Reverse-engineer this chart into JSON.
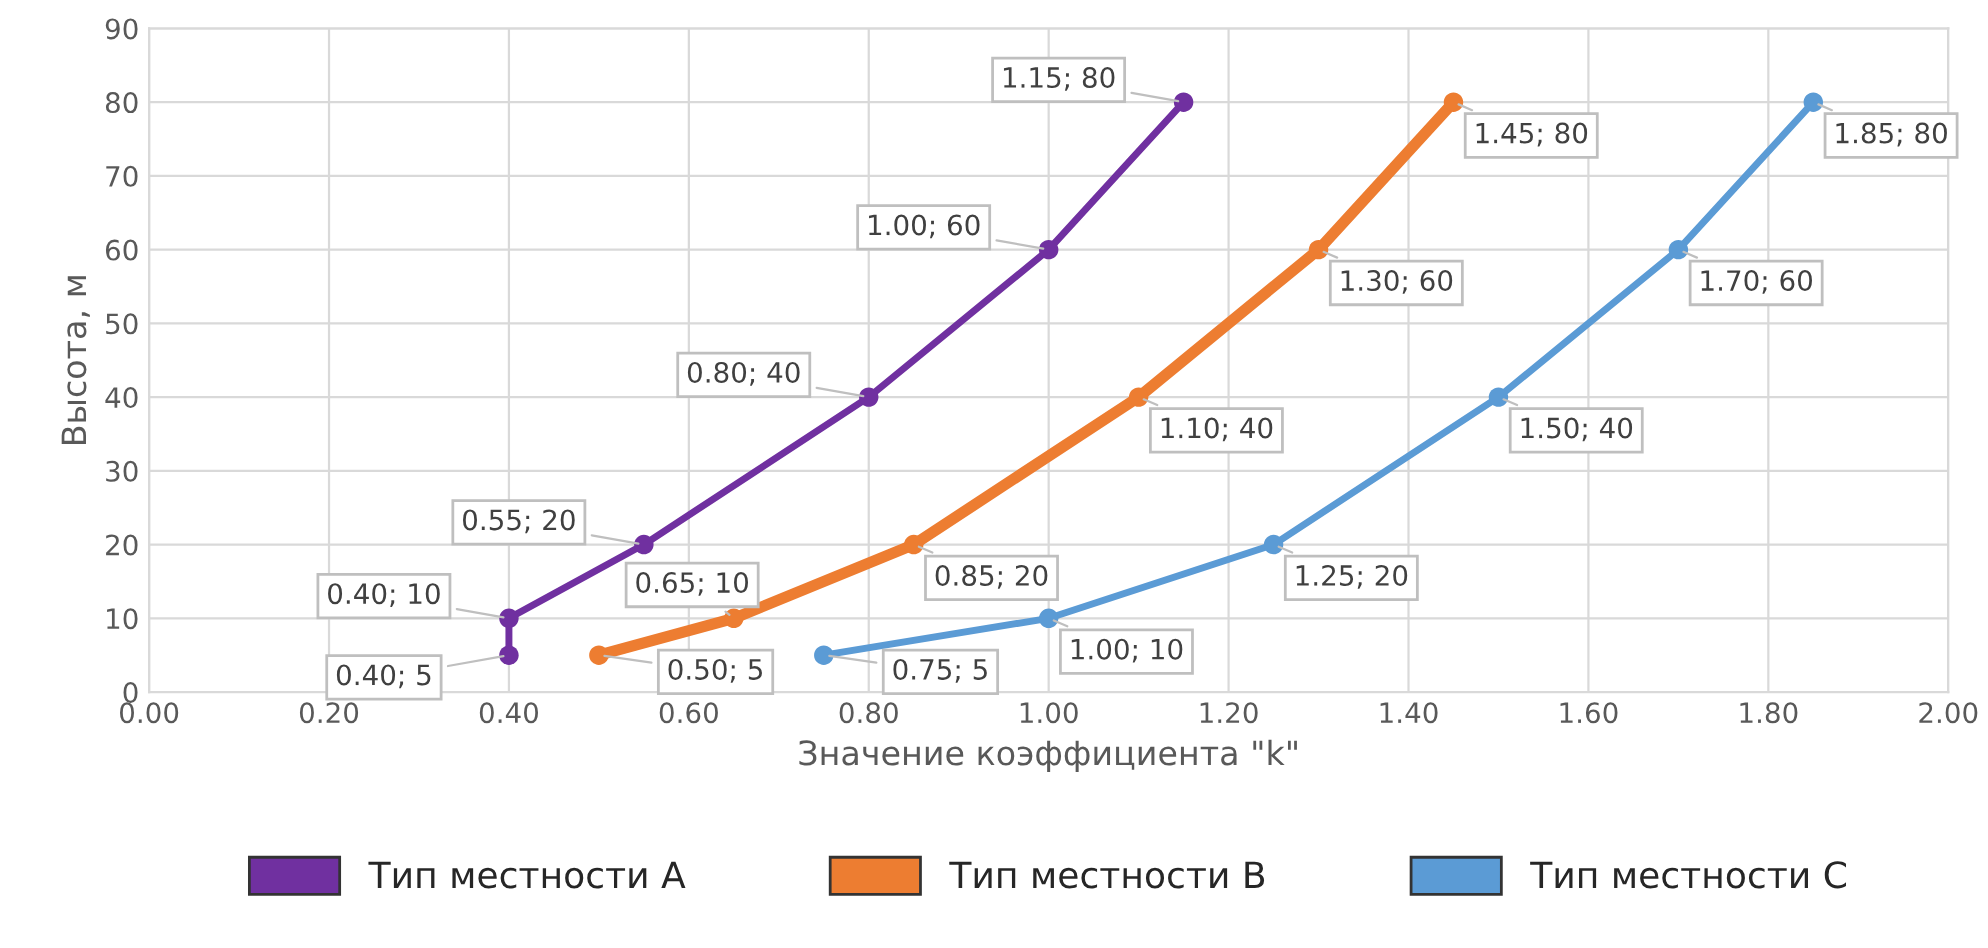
{
  "chart_data": {
    "type": "line",
    "xlabel": "Значение коэффициента \"k\"",
    "ylabel": "Высота, м",
    "xlim": [
      0,
      2
    ],
    "xticks": [
      {
        "value": 0,
        "label": "0.00"
      },
      {
        "value": 0.2,
        "label": "0.20"
      },
      {
        "value": 0.4,
        "label": "0.40"
      },
      {
        "value": 0.6,
        "label": "0.60"
      },
      {
        "value": 0.8,
        "label": "0.80"
      },
      {
        "value": 1.0,
        "label": "1.00"
      },
      {
        "value": 1.2,
        "label": "1.20"
      },
      {
        "value": 1.4,
        "label": "1.40"
      },
      {
        "value": 1.6,
        "label": "1.60"
      },
      {
        "value": 1.8,
        "label": "1.80"
      },
      {
        "value": 2.0,
        "label": "2.00"
      }
    ],
    "ylim": [
      0,
      90
    ],
    "yticks": [
      0,
      10,
      20,
      30,
      40,
      50,
      60,
      70,
      80,
      90
    ],
    "grid": true,
    "legend": "bottom",
    "marker": "circle",
    "line_style": "solid",
    "series": [
      {
        "name": "Тип местности A",
        "color": "#7030a0",
        "x": [
          0.4,
          0.4,
          0.55,
          0.8,
          1.0,
          1.15
        ],
        "values": [
          5,
          10,
          20,
          40,
          60,
          80
        ],
        "value_labels": [
          "0.40; 5",
          "0.40; 10",
          "0.55; 20",
          "0.80; 40",
          "1.00; 60",
          "1.15; 80"
        ]
      },
      {
        "name": "Тип местности B",
        "color": "#ed7d31",
        "x": [
          0.5,
          0.65,
          0.85,
          1.1,
          1.3,
          1.45
        ],
        "values": [
          5,
          10,
          20,
          40,
          60,
          80
        ],
        "value_labels": [
          "0.50; 5",
          "0.65; 10",
          "0.85; 20",
          "1.10; 40",
          "1.30; 60",
          "1.45; 80"
        ]
      },
      {
        "name": "Тип местности C",
        "color": "#5b9bd5",
        "x": [
          0.75,
          1.0,
          1.25,
          1.5,
          1.7,
          1.85
        ],
        "values": [
          5,
          10,
          20,
          40,
          60,
          80
        ],
        "value_labels": [
          "0.75; 5",
          "1.00; 10",
          "1.25; 20",
          "1.50; 40",
          "1.70; 60",
          "1.85; 80"
        ]
      }
    ]
  }
}
